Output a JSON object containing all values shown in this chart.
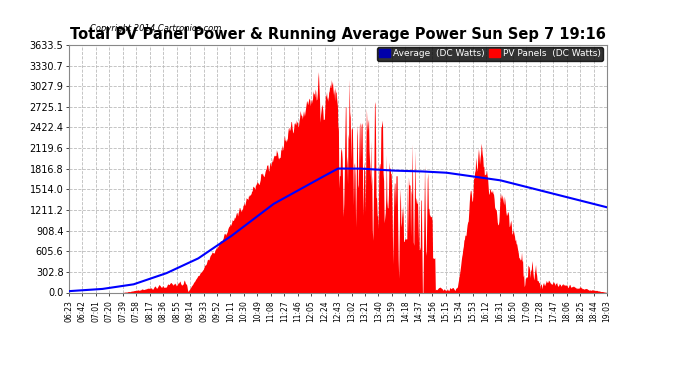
{
  "title": "Total PV Panel Power & Running Average Power Sun Sep 7 19:16",
  "copyright": "Copyright 2014 Cartronics.com",
  "legend_avg": "Average  (DC Watts)",
  "legend_pv": "PV Panels  (DC Watts)",
  "ymax": 3633.5,
  "yticks": [
    0.0,
    302.8,
    605.6,
    908.4,
    1211.2,
    1514.0,
    1816.8,
    2119.6,
    2422.4,
    2725.1,
    3027.9,
    3330.7,
    3633.5
  ],
  "red_color": "#ff0000",
  "blue_color": "#0000ff",
  "fig_bg": "#ffffff",
  "plot_bg": "#ffffff",
  "grid_color": "#bbbbbb",
  "xtick_labels": [
    "06:23",
    "06:42",
    "07:01",
    "07:20",
    "07:39",
    "07:58",
    "08:17",
    "08:36",
    "08:55",
    "09:14",
    "09:33",
    "09:52",
    "10:11",
    "10:30",
    "10:49",
    "11:08",
    "11:27",
    "11:46",
    "12:05",
    "12:24",
    "12:43",
    "13:02",
    "13:21",
    "13:40",
    "13:59",
    "14:18",
    "14:37",
    "14:56",
    "15:15",
    "15:34",
    "15:53",
    "16:12",
    "16:31",
    "16:50",
    "17:09",
    "17:28",
    "17:47",
    "18:06",
    "18:25",
    "18:44",
    "19:03"
  ],
  "avg_points_t": [
    0.0,
    0.06,
    0.12,
    0.18,
    0.24,
    0.3,
    0.38,
    0.46,
    0.5,
    0.54,
    0.6,
    0.65,
    0.7,
    0.8,
    0.9,
    1.0
  ],
  "avg_points_v": [
    20,
    50,
    120,
    280,
    500,
    820,
    1300,
    1650,
    1820,
    1820,
    1790,
    1780,
    1760,
    1650,
    1450,
    1250
  ]
}
